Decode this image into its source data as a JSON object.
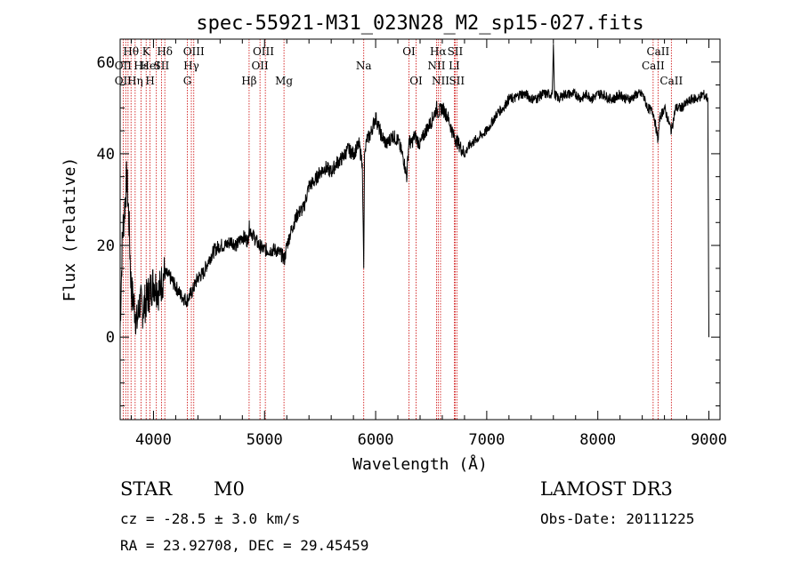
{
  "chart_data": {
    "type": "line",
    "title": "spec-55921-M31_023N28_M2_sp15-027.fits",
    "xlabel": "Wavelength (Å)",
    "ylabel": "Flux (relative)",
    "xlim": [
      3700,
      9100
    ],
    "ylim": [
      -18,
      65
    ],
    "xticks": [
      4000,
      5000,
      6000,
      7000,
      8000,
      9000
    ],
    "yticks": [
      0,
      20,
      40,
      60
    ],
    "series": [
      {
        "name": "flux",
        "x": [
          3700,
          3720,
          3740,
          3760,
          3780,
          3800,
          3820,
          3850,
          3880,
          3900,
          3950,
          4000,
          4050,
          4100,
          4150,
          4200,
          4250,
          4300,
          4350,
          4400,
          4450,
          4500,
          4550,
          4600,
          4650,
          4700,
          4750,
          4800,
          4850,
          4860,
          4900,
          4950,
          5000,
          5050,
          5100,
          5150,
          5180,
          5200,
          5250,
          5300,
          5350,
          5400,
          5450,
          5500,
          5550,
          5600,
          5650,
          5700,
          5750,
          5800,
          5850,
          5880,
          5893,
          5900,
          5920,
          5950,
          6000,
          6050,
          6100,
          6150,
          6200,
          6250,
          6280,
          6300,
          6320,
          6350,
          6400,
          6450,
          6500,
          6550,
          6563,
          6600,
          6650,
          6700,
          6750,
          6800,
          6850,
          6900,
          6950,
          7000,
          7050,
          7100,
          7150,
          7200,
          7250,
          7300,
          7350,
          7400,
          7450,
          7500,
          7550,
          7590,
          7600,
          7610,
          7650,
          7700,
          7750,
          7800,
          7850,
          7900,
          7950,
          8000,
          8050,
          8100,
          8150,
          8200,
          8250,
          8300,
          8350,
          8400,
          8450,
          8500,
          8542,
          8560,
          8600,
          8662,
          8700,
          8750,
          8800,
          8850,
          8900,
          8950,
          8990,
          9000
        ],
        "values": [
          2,
          22,
          28,
          35,
          25,
          10,
          8,
          3,
          8,
          6,
          9,
          12,
          10,
          14,
          13,
          11,
          9,
          8,
          10,
          13,
          14,
          17,
          19,
          20,
          20,
          21,
          20,
          22,
          21,
          24,
          22,
          20,
          19,
          19,
          19,
          18,
          17,
          20,
          24,
          27,
          28,
          33,
          34,
          36,
          37,
          36,
          38,
          39,
          41,
          40,
          42,
          38,
          15,
          40,
          43,
          44,
          48,
          44,
          42,
          44,
          43,
          39,
          35,
          43,
          42,
          44,
          42,
          45,
          47,
          50,
          49,
          50,
          48,
          44,
          42,
          40,
          42,
          43,
          44,
          45,
          47,
          49,
          50,
          52,
          52,
          53,
          53,
          52,
          52,
          53,
          53,
          53,
          64,
          53,
          52,
          53,
          53,
          53,
          52,
          53,
          52,
          53,
          53,
          52,
          52,
          53,
          52,
          52,
          53,
          53,
          50,
          49,
          43,
          48,
          50,
          45,
          50,
          50,
          51,
          52,
          52,
          53,
          52,
          0
        ]
      }
    ],
    "line_labels": [
      {
        "text": "Hθ",
        "wl": 3798,
        "row": 1
      },
      {
        "text": "OII",
        "wl": 3727,
        "row": 2
      },
      {
        "text": "Hε",
        "wl": 3889,
        "row": 2
      },
      {
        "text": "OII",
        "wl": 3727,
        "row": 3
      },
      {
        "text": "Hη",
        "wl": 3835,
        "row": 3
      },
      {
        "text": "K",
        "wl": 3934,
        "row": 1
      },
      {
        "text": "HeI",
        "wl": 3970,
        "row": 2
      },
      {
        "text": "H",
        "wl": 3969,
        "row": 3
      },
      {
        "text": "Hδ",
        "wl": 4102,
        "row": 1
      },
      {
        "text": "SII",
        "wl": 4072,
        "row": 2
      },
      {
        "text": "OIII",
        "wl": 4363,
        "row": 1
      },
      {
        "text": "Hγ",
        "wl": 4341,
        "row": 2
      },
      {
        "text": "G",
        "wl": 4305,
        "row": 3
      },
      {
        "text": "OIII",
        "wl": 4990,
        "row": 1
      },
      {
        "text": "OII",
        "wl": 4959,
        "row": 2
      },
      {
        "text": "Hβ",
        "wl": 4861,
        "row": 3
      },
      {
        "text": "Mg",
        "wl": 5175,
        "row": 3
      },
      {
        "text": "Na",
        "wl": 5893,
        "row": 2
      },
      {
        "text": "OI",
        "wl": 6300,
        "row": 1
      },
      {
        "text": "OI",
        "wl": 6364,
        "row": 3
      },
      {
        "text": "Hα",
        "wl": 6563,
        "row": 1
      },
      {
        "text": "SII",
        "wl": 6716,
        "row": 1
      },
      {
        "text": "NII",
        "wl": 6548,
        "row": 2
      },
      {
        "text": "LI",
        "wl": 6708,
        "row": 2
      },
      {
        "text": "NII",
        "wl": 6584,
        "row": 3
      },
      {
        "text": "SII",
        "wl": 6731,
        "row": 3
      },
      {
        "text": "CaII",
        "wl": 8542,
        "row": 1
      },
      {
        "text": "CaII",
        "wl": 8498,
        "row": 2
      },
      {
        "text": "CaII",
        "wl": 8662,
        "row": 3
      }
    ],
    "line_marker_wavelengths": [
      3727,
      3750,
      3771,
      3798,
      3835,
      3889,
      3934,
      3969,
      4026,
      4072,
      4102,
      4305,
      4341,
      4363,
      4861,
      4959,
      5007,
      5175,
      5893,
      6300,
      6364,
      6548,
      6563,
      6584,
      6708,
      6716,
      6731,
      8498,
      8542,
      8662
    ],
    "marker_color": "#cc0000"
  },
  "info": {
    "class_label": "STAR",
    "subclass": "M0",
    "survey": "LAMOST DR3",
    "redshift": "cz = -28.5 ± 3.0 km/s",
    "obs_date": "Obs-Date: 20111225",
    "coords": "RA =  23.92708, DEC =  29.45459"
  }
}
